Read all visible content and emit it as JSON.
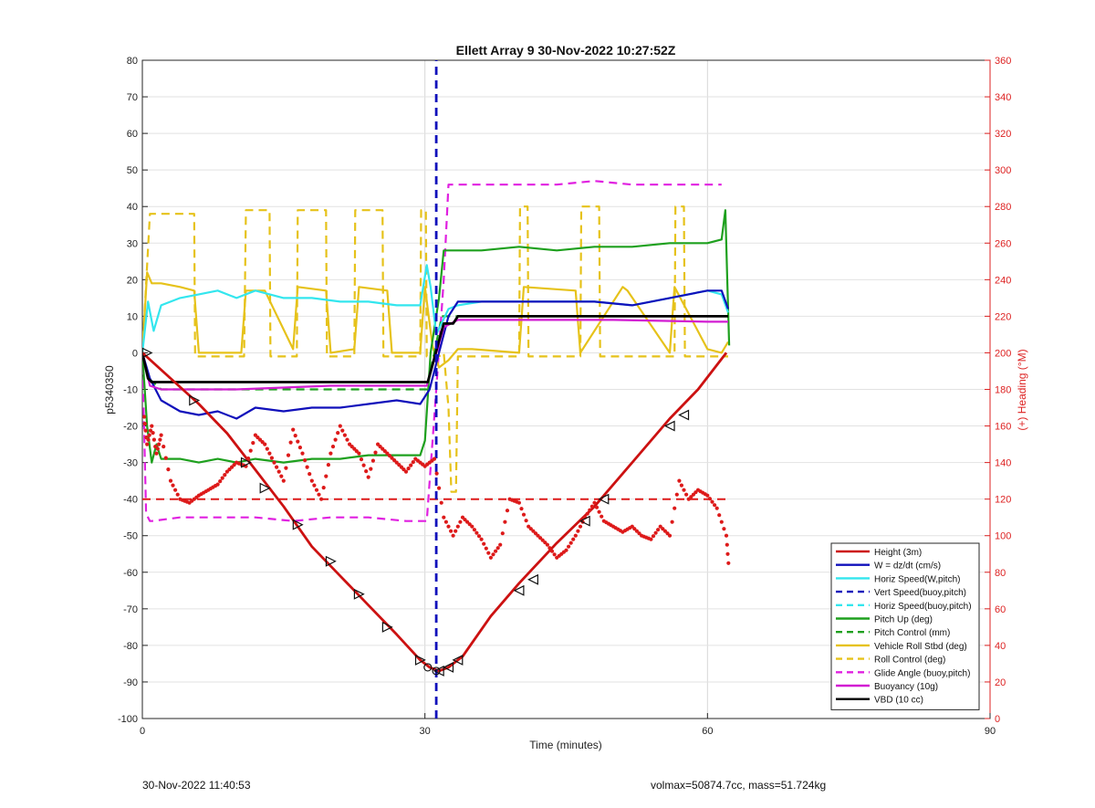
{
  "footer": {
    "timestamp": "30-Nov-2022 11:40:53",
    "volmax": "volmax=50874.7cc, mass=51.724kg"
  },
  "chart_data": {
    "type": "line",
    "title": "Ellett Array 9 30-Nov-2022 10:27:52Z",
    "xlabel": "Time (minutes)",
    "ylabel": "p5340350",
    "ylabel_right": "(+) Heading (°M)",
    "xlim": [
      0,
      90
    ],
    "ylim": [
      -100,
      80
    ],
    "ylim_right": [
      0,
      360
    ],
    "x_ticks": [
      0,
      30,
      60,
      90
    ],
    "y_ticks": [
      -100,
      -90,
      -80,
      -70,
      -60,
      -50,
      -40,
      -30,
      -20,
      -10,
      0,
      10,
      20,
      30,
      40,
      50,
      60,
      70,
      80
    ],
    "y_ticks_right": [
      0,
      20,
      40,
      60,
      80,
      100,
      120,
      140,
      160,
      180,
      200,
      220,
      240,
      260,
      280,
      300,
      320,
      340,
      360
    ],
    "grid": true,
    "legend_position": "bottom-right",
    "colors": {
      "height": "#cc1111",
      "w": "#1010bb",
      "horiz": "#33e6ee",
      "pitch": "#1ea01e",
      "roll": "#e6c21a",
      "glide": "#e020e0",
      "buoy": "#d21cd2",
      "vbd": "#000000",
      "heading": "#dd1a1a",
      "right_axis": "#dd2222"
    },
    "series": [
      {
        "key": "height",
        "name": "Height (3m)",
        "style": "solid",
        "color": "#cc1111",
        "x": [
          0,
          3,
          6,
          9,
          12,
          15,
          18,
          21,
          24,
          27,
          29.5,
          30.5,
          31.5,
          32.5,
          34,
          37,
          40,
          44,
          48,
          52,
          56,
          59,
          62
        ],
        "y": [
          0,
          -7,
          -14,
          -22,
          -32,
          -42,
          -53,
          -61,
          -69,
          -77,
          -84,
          -86,
          -87,
          -86,
          -83,
          -72,
          -63,
          -52,
          -42,
          -30,
          -18,
          -10,
          0
        ]
      },
      {
        "key": "w",
        "name": "W = dz/dt (cm/s)",
        "style": "solid",
        "color": "#1010bb",
        "x": [
          0,
          0.8,
          2,
          4,
          6,
          8,
          10,
          12,
          15,
          18,
          21,
          24,
          27,
          29.5,
          30.5,
          31.5,
          32.5,
          33.5,
          36,
          40,
          44,
          48,
          52,
          56,
          60,
          61.5,
          62.2
        ],
        "y": [
          0,
          -7,
          -13,
          -16,
          -17,
          -16,
          -18,
          -15,
          -16,
          -15,
          -15,
          -14,
          -13,
          -14,
          -10,
          0,
          10,
          14,
          14,
          14,
          14,
          14,
          13,
          15,
          17,
          17,
          12
        ]
      },
      {
        "key": "horiz",
        "name": "Horiz Speed(W,pitch)",
        "style": "solid",
        "color": "#33e6ee",
        "x": [
          0,
          0.6,
          1.2,
          2,
          4,
          6,
          8,
          10,
          12,
          15,
          18,
          21,
          24,
          27,
          29.5,
          30.2,
          30.6,
          31.2,
          32.5,
          33.5,
          36,
          40,
          44,
          48,
          52,
          56,
          60,
          61.5,
          62.2
        ],
        "y": [
          0,
          14,
          6,
          13,
          15,
          16,
          17,
          15,
          17,
          15,
          15,
          14,
          14,
          13,
          13,
          24,
          18,
          5,
          12,
          13,
          14,
          14,
          14,
          14,
          13,
          15,
          17,
          16,
          11
        ]
      },
      {
        "key": "vert_buoy",
        "name": "Vert Speed(buoy,pitch)",
        "style": "dashed",
        "color": "#1010bb",
        "x": [
          31.2,
          31.2
        ],
        "y": [
          -100,
          80
        ]
      },
      {
        "key": "horiz_buoy",
        "name": "Horiz Speed(buoy,pitch)",
        "style": "dashed",
        "color": "#33e6ee",
        "x": [],
        "y": []
      },
      {
        "key": "pitch",
        "name": "Pitch Up (deg)",
        "style": "solid",
        "color": "#1ea01e",
        "x": [
          0,
          0.5,
          1,
          1.5,
          2,
          4,
          6,
          8,
          10,
          12,
          15,
          18,
          21,
          24,
          27,
          29.5,
          30,
          30.6,
          31.5,
          32,
          32.5,
          34,
          36,
          40,
          44,
          48,
          52,
          56,
          60,
          61.5,
          61.9,
          62.1,
          62.3
        ],
        "y": [
          0,
          -20,
          -30,
          -25,
          -29,
          -29,
          -30,
          -29,
          -30,
          -29,
          -30,
          -29,
          -29,
          -28,
          -28,
          -28,
          -24,
          0,
          15,
          28,
          28,
          28,
          28,
          29,
          28,
          29,
          29,
          30,
          30,
          31,
          39,
          20,
          2
        ]
      },
      {
        "key": "pitch_ctrl",
        "name": "Pitch Control (mm)",
        "style": "dashed",
        "color": "#1ea01e",
        "x": [
          0,
          0.7,
          2,
          10,
          20,
          30.2,
          31.8,
          62.2
        ],
        "y": [
          0,
          -7,
          -10,
          -10,
          -10,
          -10,
          10,
          10
        ]
      },
      {
        "key": "roll",
        "name": "Vehicle Roll Stbd (deg)",
        "style": "solid",
        "color": "#e6c21a",
        "x": [
          0,
          0.5,
          1,
          2,
          4,
          5.5,
          6,
          8,
          10.5,
          11,
          13,
          16,
          16.5,
          19.5,
          20,
          22.5,
          23,
          26,
          26.5,
          29.5,
          30,
          30.8,
          31.5,
          32.5,
          33.5,
          35,
          40,
          40.5,
          46,
          46.5,
          51,
          51.5,
          56,
          56.5,
          60,
          61.5,
          62.2
        ],
        "y": [
          0,
          22,
          19,
          19,
          18,
          17,
          0,
          0,
          0,
          17,
          17,
          1,
          18,
          17,
          0,
          1,
          18,
          17,
          0,
          0,
          18,
          2,
          -4,
          -2,
          1,
          1,
          0,
          18,
          17,
          0,
          18,
          17,
          0,
          18,
          1,
          0,
          3
        ]
      },
      {
        "key": "roll_ctrl",
        "name": "Roll Control (deg)",
        "style": "dashed",
        "color": "#e6c21a",
        "x": [
          0,
          0.8,
          1,
          5.5,
          5.6,
          10.8,
          11,
          13.5,
          13.6,
          16.4,
          16.5,
          19.5,
          19.6,
          22.5,
          22.6,
          25.5,
          25.6,
          29.5,
          29.6,
          30.1,
          30.2,
          31.5,
          32,
          32.5,
          32.8,
          33.3,
          33.5,
          40,
          40.1,
          40.9,
          41,
          46.5,
          46.6,
          48.5,
          48.6,
          56.5,
          56.6,
          57.5,
          57.6,
          62.2
        ],
        "y": [
          0,
          38,
          38,
          38,
          -1,
          -1,
          39,
          39,
          -1,
          -1,
          39,
          39,
          -1,
          -1,
          39,
          39,
          -1,
          -1,
          39,
          39,
          -1,
          -1,
          0,
          -15,
          -38,
          -38,
          -1,
          -1,
          40,
          40,
          -1,
          -1,
          40,
          40,
          -1,
          -1,
          40,
          40,
          -1,
          -1
        ]
      },
      {
        "key": "glide",
        "name": "Glide Angle (buoy,pitch)",
        "style": "dashed",
        "color": "#e020e0",
        "x": [
          0,
          0.4,
          0.8,
          1,
          4,
          8,
          12,
          16,
          20,
          24,
          28,
          30.2,
          31.2,
          32,
          32.5,
          33.5,
          36,
          40,
          44,
          48,
          52,
          56,
          60,
          61.5
        ],
        "y": [
          0,
          -44,
          -46,
          -46,
          -45,
          -45,
          -45,
          -46,
          -45,
          -45,
          -46,
          -46,
          -10,
          20,
          46,
          46,
          46,
          46,
          46,
          47,
          46,
          46,
          46,
          46
        ]
      },
      {
        "key": "buoy",
        "name": "Buoyancy (10g)",
        "style": "solid",
        "color": "#d21cd2",
        "x": [
          0,
          0.8,
          2,
          10,
          20,
          30.2,
          32,
          33.5,
          40,
          50,
          60,
          62.2
        ],
        "y": [
          0,
          -9,
          -10,
          -10,
          -9,
          -9,
          7,
          9,
          9,
          9,
          8.5,
          8.5
        ]
      },
      {
        "key": "vbd",
        "name": "VBD (10 cc)",
        "style": "solid",
        "color": "#000000",
        "x": [
          0,
          0.6,
          1,
          10,
          20,
          30.3,
          32,
          33,
          33.5,
          40,
          50,
          62.2
        ],
        "y": [
          0,
          -7,
          -8,
          -8,
          -8,
          -8,
          8,
          8,
          10,
          10,
          10,
          10
        ]
      }
    ],
    "heading_dotted": {
      "axis": "right",
      "color": "#dd1a1a",
      "x": [
        0.2,
        0.5,
        1,
        1.5,
        2,
        3,
        4,
        5,
        6,
        7,
        8,
        9,
        10,
        11,
        12,
        13,
        14,
        15,
        16,
        17,
        18,
        19,
        20,
        21,
        22,
        23,
        24,
        25,
        26,
        27,
        28,
        29,
        30,
        31,
        32,
        33,
        34,
        35,
        36,
        37,
        38,
        39,
        40,
        41,
        42,
        43,
        44,
        45,
        46,
        47,
        48,
        49,
        50,
        51,
        52,
        53,
        54,
        55,
        56,
        57,
        58,
        59,
        60,
        61,
        62,
        62.3
      ],
      "y": [
        165,
        150,
        160,
        145,
        155,
        130,
        120,
        118,
        122,
        125,
        128,
        135,
        140,
        138,
        155,
        150,
        140,
        130,
        158,
        145,
        130,
        120,
        145,
        160,
        150,
        145,
        132,
        150,
        145,
        140,
        135,
        142,
        138,
        142,
        110,
        100,
        110,
        105,
        98,
        88,
        95,
        120,
        118,
        105,
        100,
        95,
        88,
        92,
        100,
        110,
        118,
        108,
        105,
        102,
        105,
        100,
        98,
        105,
        100,
        130,
        120,
        125,
        122,
        115,
        100,
        80
      ]
    },
    "heading_dashed": {
      "axis": "right",
      "name": "",
      "color": "#dd1a1a",
      "x": [
        0,
        62.2
      ],
      "y": [
        120,
        120
      ]
    },
    "height_markers": {
      "down": {
        "x": [
          0.5,
          5.5,
          11,
          13,
          16.5,
          20,
          23,
          26,
          29.5
        ],
        "y": [
          0,
          -13,
          -30,
          -37,
          -47,
          -57,
          -66,
          -75,
          -84
        ]
      },
      "up": {
        "x": [
          31.5,
          32.5,
          33.5,
          40,
          41.5,
          47,
          49,
          56,
          57.5
        ],
        "y": [
          -87,
          -86,
          -84,
          -65,
          -62,
          -46,
          -40,
          -20,
          -17
        ]
      },
      "bottom": {
        "x": [
          30.3,
          31.2
        ],
        "y": [
          -86,
          -87
        ]
      }
    }
  }
}
